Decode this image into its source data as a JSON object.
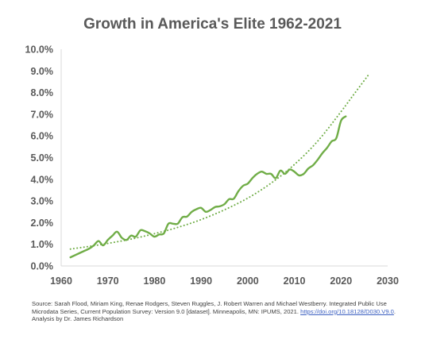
{
  "chart_data": {
    "type": "line",
    "title": "Growth in America's Elite 1962-2021",
    "xlabel": "",
    "ylabel": "",
    "xlim": [
      1960,
      2030
    ],
    "ylim": [
      0,
      0.1
    ],
    "x_ticks": [
      "1960",
      "1970",
      "1980",
      "1990",
      "2000",
      "2010",
      "2020",
      "2030"
    ],
    "y_ticks": [
      "0.0%",
      "1.0%",
      "2.0%",
      "3.0%",
      "4.0%",
      "5.0%",
      "6.0%",
      "7.0%",
      "8.0%",
      "9.0%",
      "10.0%"
    ],
    "grid": false,
    "legend": "none",
    "series": [
      {
        "style": "solid",
        "color": "#70ad47",
        "points": [
          [
            1962,
            0.004
          ],
          [
            1964,
            0.006
          ],
          [
            1966,
            0.008
          ],
          [
            1967,
            0.0095
          ],
          [
            1968,
            0.0115
          ],
          [
            1969,
            0.0095
          ],
          [
            1970,
            0.012
          ],
          [
            1971,
            0.014
          ],
          [
            1972,
            0.0158
          ],
          [
            1973,
            0.013
          ],
          [
            1974,
            0.012
          ],
          [
            1975,
            0.014
          ],
          [
            1976,
            0.0135
          ],
          [
            1977,
            0.0165
          ],
          [
            1978,
            0.016
          ],
          [
            1979,
            0.015
          ],
          [
            1980,
            0.0135
          ],
          [
            1981,
            0.0145
          ],
          [
            1982,
            0.015
          ],
          [
            1983,
            0.0195
          ],
          [
            1984,
            0.0195
          ],
          [
            1985,
            0.0195
          ],
          [
            1986,
            0.0225
          ],
          [
            1987,
            0.0228
          ],
          [
            1988,
            0.025
          ],
          [
            1989,
            0.0262
          ],
          [
            1990,
            0.0268
          ],
          [
            1991,
            0.025
          ],
          [
            1992,
            0.0258
          ],
          [
            1993,
            0.0272
          ],
          [
            1994,
            0.0275
          ],
          [
            1995,
            0.0285
          ],
          [
            1996,
            0.0308
          ],
          [
            1997,
            0.031
          ],
          [
            1998,
            0.0345
          ],
          [
            1999,
            0.037
          ],
          [
            2000,
            0.038
          ],
          [
            2001,
            0.0405
          ],
          [
            2002,
            0.0425
          ],
          [
            2003,
            0.0435
          ],
          [
            2004,
            0.0425
          ],
          [
            2005,
            0.0425
          ],
          [
            2006,
            0.0405
          ],
          [
            2007,
            0.044
          ],
          [
            2008,
            0.0425
          ],
          [
            2009,
            0.0445
          ],
          [
            2010,
            0.0435
          ],
          [
            2011,
            0.0418
          ],
          [
            2012,
            0.0425
          ],
          [
            2013,
            0.045
          ],
          [
            2014,
            0.0465
          ],
          [
            2015,
            0.049
          ],
          [
            2016,
            0.052
          ],
          [
            2017,
            0.0545
          ],
          [
            2018,
            0.0575
          ],
          [
            2019,
            0.059
          ],
          [
            2020,
            0.067
          ],
          [
            2021,
            0.069
          ]
        ]
      },
      {
        "style": "dotted",
        "color": "#70ad47",
        "points": [
          [
            1962,
            0.0078
          ],
          [
            1965,
            0.0087
          ],
          [
            1970,
            0.0104
          ],
          [
            1975,
            0.0124
          ],
          [
            1980,
            0.0149
          ],
          [
            1985,
            0.0178
          ],
          [
            1990,
            0.0214
          ],
          [
            1995,
            0.0259
          ],
          [
            2000,
            0.0313
          ],
          [
            2005,
            0.0382
          ],
          [
            2010,
            0.0468
          ],
          [
            2015,
            0.0576
          ],
          [
            2020,
            0.0712
          ],
          [
            2023,
            0.0799
          ],
          [
            2026,
            0.0885
          ]
        ]
      }
    ]
  },
  "source": {
    "text_before": "Source: Sarah Flood, Miriam King, Renae Rodgers, Steven Ruggles, J. Robert Warren and Michael Westberry. Integrated Public Use Microdata Series, Current Population Survey: Version 9.0 [dataset]. Minneapolis, MN: IPUMS, 2021. ",
    "link": "https://doi.org/10.18128/D030.V9.0",
    "text_after": ". Analysis by Dr. James Richardson"
  }
}
